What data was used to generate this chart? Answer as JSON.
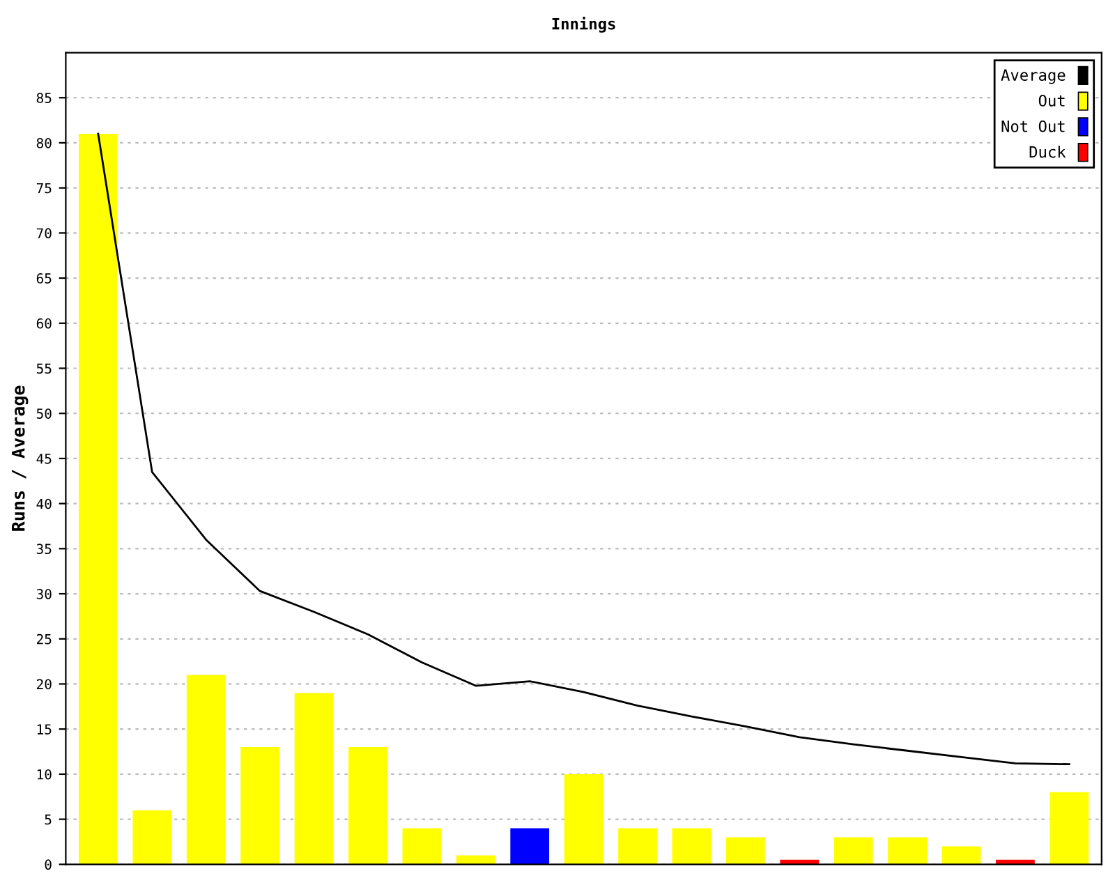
{
  "chart_data": {
    "type": "bar",
    "title": "Innings",
    "ylabel": "Runs / Average",
    "categories": [
      null,
      null,
      null,
      null,
      null,
      null,
      null,
      null,
      null,
      null,
      null,
      null,
      null,
      null,
      null,
      null,
      null,
      null,
      null
    ],
    "series": [
      {
        "name": "Average",
        "type": "line",
        "color": "#000000",
        "values": [
          81,
          43.5,
          36,
          30.3,
          28,
          25.5,
          22.4,
          19.8,
          20.3,
          19.1,
          17.6,
          16.4,
          15.3,
          14.1,
          13.3,
          12.6,
          11.9,
          11.2,
          11.1
        ]
      },
      {
        "name": "Out",
        "color": "#ffff00",
        "values": [
          81,
          6,
          21,
          13,
          19,
          13,
          4,
          1,
          null,
          10,
          4,
          4,
          3,
          null,
          3,
          3,
          2,
          null,
          8
        ]
      },
      {
        "name": "Not Out",
        "color": "#0000ff",
        "values": [
          null,
          null,
          null,
          null,
          null,
          null,
          null,
          null,
          4,
          null,
          null,
          null,
          null,
          null,
          null,
          null,
          null,
          null,
          null
        ]
      },
      {
        "name": "Duck",
        "color": "#ff0000",
        "values": [
          null,
          null,
          null,
          null,
          null,
          null,
          null,
          null,
          null,
          null,
          null,
          null,
          null,
          0.5,
          null,
          null,
          null,
          0.5,
          null
        ]
      }
    ],
    "ylim": [
      0,
      90
    ],
    "yticks": [
      0,
      5,
      10,
      15,
      20,
      25,
      30,
      35,
      40,
      45,
      50,
      55,
      60,
      65,
      70,
      75,
      80,
      85
    ],
    "grid": "y",
    "legend": "top right",
    "tick_labels": "y"
  }
}
